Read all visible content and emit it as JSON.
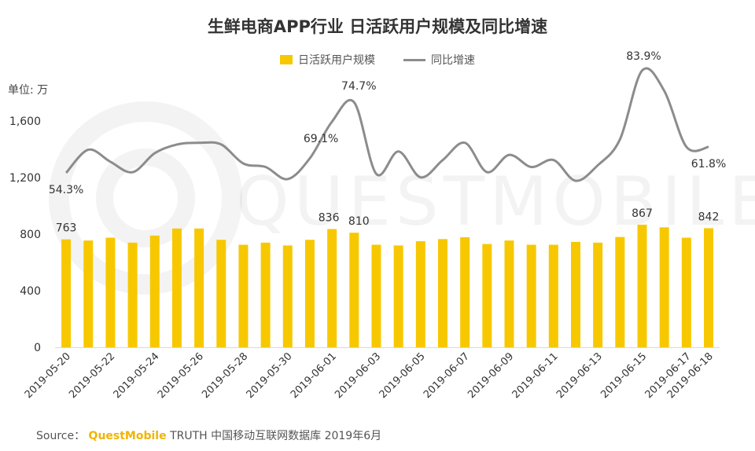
{
  "chart_data": {
    "type": "bar+line",
    "title": "生鲜电商APP行业 日活跃用户规模及同比增速",
    "unit_label": "单位: 万",
    "legend": [
      {
        "name": "日活跃用户规模",
        "kind": "bar",
        "color": "#F7C800"
      },
      {
        "name": "同比增速",
        "kind": "line",
        "color": "#8C8C8C"
      }
    ],
    "y_ticks": [
      "0",
      "400",
      "800",
      "1,200",
      "1,600"
    ],
    "ylim": [
      0,
      1600
    ],
    "grid": false,
    "dates": [
      "2019-05-20",
      "2019-05-21",
      "2019-05-22",
      "2019-05-23",
      "2019-05-24",
      "2019-05-25",
      "2019-05-26",
      "2019-05-27",
      "2019-05-28",
      "2019-05-29",
      "2019-05-30",
      "2019-05-31",
      "2019-06-01",
      "2019-06-02",
      "2019-06-03",
      "2019-06-04",
      "2019-06-05",
      "2019-06-06",
      "2019-06-07",
      "2019-06-08",
      "2019-06-09",
      "2019-06-10",
      "2019-06-11",
      "2019-06-12",
      "2019-06-13",
      "2019-06-14",
      "2019-06-15",
      "2019-06-16",
      "2019-06-17",
      "2019-06-18"
    ],
    "x_tick_labels": [
      "2019-05-20",
      "2019-05-22",
      "2019-05-24",
      "2019-05-26",
      "2019-05-28",
      "2019-05-30",
      "2019-06-01",
      "2019-06-03",
      "2019-06-05",
      "2019-06-07",
      "2019-06-09",
      "2019-06-11",
      "2019-06-13",
      "2019-06-15",
      "2019-06-17",
      "2019-06-18"
    ],
    "series": [
      {
        "name": "日活跃用户规模",
        "type": "bar",
        "values": [
          763,
          755,
          775,
          740,
          790,
          840,
          840,
          760,
          725,
          740,
          720,
          760,
          836,
          810,
          725,
          720,
          750,
          765,
          778,
          730,
          755,
          725,
          725,
          745,
          740,
          780,
          867,
          848,
          775,
          842
        ]
      },
      {
        "name": "同比增速",
        "type": "line",
        "unit": "%",
        "values": [
          54.3,
          61.0,
          57.5,
          54.5,
          60.0,
          62.5,
          63.0,
          62.5,
          57.0,
          56.0,
          52.5,
          58.5,
          69.1,
          74.7,
          54.0,
          60.5,
          53.0,
          58.0,
          63.0,
          54.5,
          59.5,
          56.0,
          58.0,
          52.0,
          56.5,
          64.0,
          83.9,
          78.0,
          61.8,
          61.8
        ]
      }
    ],
    "bar_labels": [
      {
        "index": 0,
        "text": "763"
      },
      {
        "index": 12,
        "text": "836"
      },
      {
        "index": 13,
        "text": "810"
      },
      {
        "index": 26,
        "text": "867"
      },
      {
        "index": 29,
        "text": "842"
      }
    ],
    "line_labels": [
      {
        "index": 0,
        "text": "54.3%"
      },
      {
        "index": 12,
        "text": "69.1%"
      },
      {
        "index": 13,
        "text": "74.7%"
      },
      {
        "index": 26,
        "text": "83.9%"
      },
      {
        "index": 29,
        "text": "61.8%"
      }
    ]
  },
  "watermark": "QUESTMOBILE",
  "source": {
    "prefix": "Source：",
    "brand": "QuestMobile",
    "brand_suffix": "TRUTH",
    "rest": "中国移动互联网数据库 2019年6月"
  }
}
